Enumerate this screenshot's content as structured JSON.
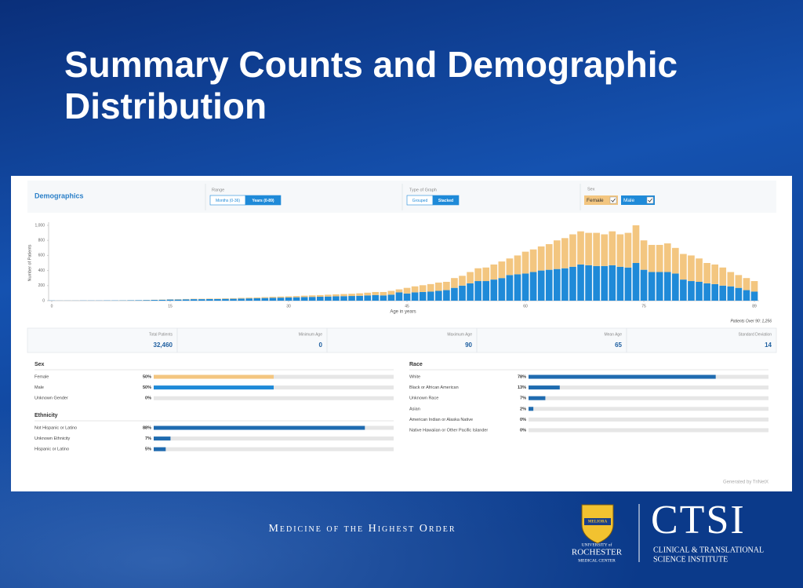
{
  "slide": {
    "title": "Summary Counts and Demographic Distribution",
    "footer": {
      "tagline": "Medicine of the Highest Order",
      "shield_motto": "MELIORA",
      "university_lines": [
        "UNIVERSITY of",
        "ROCHESTER",
        "MEDICAL CENTER"
      ],
      "institute_short": "CTSI",
      "institute_lines": [
        "CLINICAL & TRANSLATIONAL",
        "SCIENCE INSTITUTE"
      ]
    }
  },
  "header": {
    "title": "Demographics",
    "range": {
      "label": "Range",
      "options": [
        "Months (0-36)",
        "Years (0-89)"
      ],
      "active": 1
    },
    "graph_type": {
      "label": "Type of Graph",
      "options": [
        "Grouped",
        "Stacked"
      ],
      "active": 1
    },
    "sex_filter": {
      "label": "Sex"
    }
  },
  "chart_data": {
    "type": "stacked_bar",
    "x_label": "Age in years",
    "y_label": "Number of Patients",
    "note": "Patients Over 90: 1,256",
    "x": [
      0,
      1,
      2,
      3,
      4,
      5,
      6,
      7,
      8,
      9,
      10,
      11,
      12,
      13,
      14,
      15,
      16,
      17,
      18,
      19,
      20,
      21,
      22,
      23,
      24,
      25,
      26,
      27,
      28,
      29,
      30,
      31,
      32,
      33,
      34,
      35,
      36,
      37,
      38,
      39,
      40,
      41,
      42,
      43,
      44,
      45,
      46,
      47,
      48,
      49,
      50,
      51,
      52,
      53,
      54,
      55,
      56,
      57,
      58,
      59,
      60,
      61,
      62,
      63,
      64,
      65,
      66,
      67,
      68,
      69,
      70,
      71,
      72,
      73,
      74,
      75,
      76,
      77,
      78,
      79,
      80,
      81,
      82,
      83,
      84,
      85,
      86,
      87,
      88,
      89
    ],
    "xlim": [
      0,
      89
    ],
    "xticks": [
      0,
      15,
      30,
      45,
      60,
      75,
      89
    ],
    "ylim": [
      0,
      1000
    ],
    "yticks": [
      0,
      200,
      400,
      600,
      800,
      {
        "value": 1000,
        "label": "1,000"
      }
    ],
    "grid": false,
    "series": [
      {
        "name": "Female",
        "color": "#f3c680",
        "values": [
          0,
          0,
          0,
          0,
          0,
          0,
          0,
          0,
          0,
          1,
          1,
          1,
          2,
          2,
          3,
          3,
          4,
          4,
          5,
          5,
          6,
          6,
          7,
          8,
          9,
          10,
          11,
          12,
          13,
          14,
          15,
          16,
          18,
          20,
          22,
          24,
          26,
          28,
          30,
          33,
          36,
          40,
          45,
          50,
          40,
          75,
          80,
          90,
          100,
          110,
          110,
          130,
          130,
          150,
          170,
          180,
          200,
          220,
          220,
          250,
          290,
          300,
          320,
          340,
          380,
          400,
          430,
          440,
          430,
          440,
          420,
          450,
          430,
          460,
          500,
          390,
          360,
          360,
          380,
          340,
          340,
          340,
          310,
          270,
          260,
          240,
          190,
          170,
          160,
          140
        ]
      },
      {
        "name": "Male",
        "color": "#1f8ad8",
        "values": [
          2,
          1,
          1,
          1,
          2,
          2,
          2,
          3,
          3,
          4,
          5,
          6,
          8,
          10,
          12,
          15,
          15,
          18,
          20,
          20,
          22,
          22,
          24,
          25,
          28,
          30,
          32,
          35,
          38,
          40,
          42,
          45,
          48,
          50,
          52,
          55,
          58,
          60,
          62,
          65,
          70,
          75,
          70,
          80,
          110,
          95,
          110,
          115,
          120,
          130,
          140,
          170,
          200,
          230,
          260,
          260,
          280,
          300,
          340,
          350,
          360,
          380,
          400,
          410,
          420,
          430,
          450,
          480,
          470,
          460,
          460,
          470,
          450,
          440,
          500,
          410,
          380,
          380,
          380,
          360,
          280,
          260,
          250,
          230,
          220,
          200,
          190,
          170,
          140,
          120
        ]
      }
    ]
  },
  "stats": [
    {
      "label": "Total Patients",
      "value": "32,460"
    },
    {
      "label": "Minimum Age",
      "value": "0"
    },
    {
      "label": "Maximum Age",
      "value": "90"
    },
    {
      "label": "Mean Age",
      "value": "65"
    },
    {
      "label": "Standard Deviation",
      "value": "14"
    }
  ],
  "demographics": {
    "sections": [
      {
        "title": "Sex",
        "categories": [
          "Female",
          "Male",
          "Unknown Gender"
        ],
        "values": [
          50,
          50,
          0
        ],
        "value_labels": [
          "50%",
          "50%",
          "0%"
        ],
        "colors": [
          "#f3c680",
          "#1f8ad8",
          "#1f6bb0"
        ],
        "xlim": [
          0,
          100
        ]
      },
      {
        "title": "Ethnicity",
        "categories": [
          "Not Hispanic or Latino",
          "Unknown Ethnicity",
          "Hispanic or Latino"
        ],
        "values": [
          88,
          7,
          5
        ],
        "value_labels": [
          "88%",
          "7%",
          "5%"
        ],
        "color": "#1f6bb0",
        "xlim": [
          0,
          100
        ]
      },
      {
        "title": "Race",
        "categories": [
          "White",
          "Black or African American",
          "Unknown Race",
          "Asian",
          "American Indian or Alaska Native",
          "Native Hawaiian or Other Pacific Islander"
        ],
        "values": [
          78,
          13,
          7,
          2,
          0,
          0
        ],
        "value_labels": [
          "78%",
          "13%",
          "7%",
          "2%",
          "0%",
          "0%"
        ],
        "color": "#1f6bb0",
        "xlim": [
          0,
          100
        ]
      }
    ],
    "credit": "Generated by TriNetX"
  }
}
